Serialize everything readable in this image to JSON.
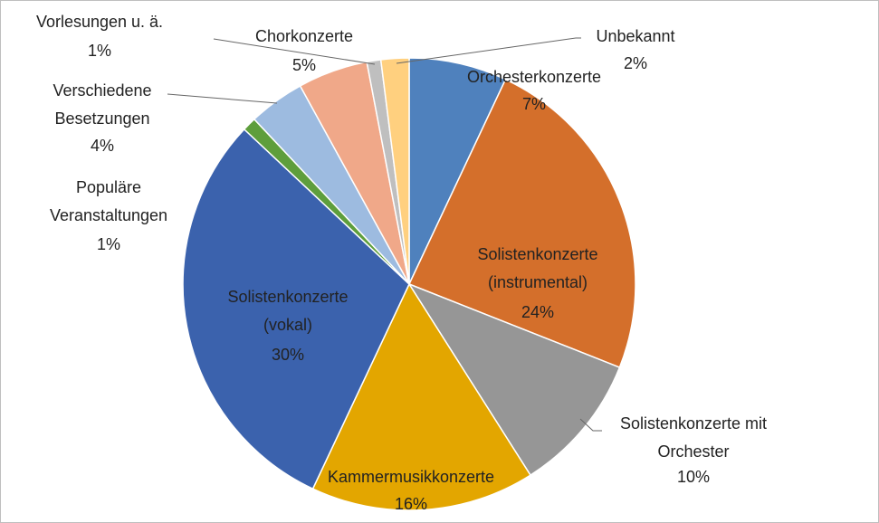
{
  "chart_data": {
    "type": "pie",
    "categories": [
      "Orchesterkonzerte",
      "Solistenkonzerte (instrumental)",
      "Solistenkonzerte mit Orchester",
      "Kammermusikkonzerte",
      "Solistenkonzerte (vokal)",
      "Populäre Veranstaltungen",
      "Verschiedene Besetzungen",
      "Chorkonzerte",
      "Vorlesungen u. ä.",
      "Unbekannt"
    ],
    "values": [
      7,
      24,
      10,
      16,
      30,
      1,
      4,
      5,
      1,
      2
    ],
    "value_labels": [
      "7%",
      "24%",
      "10%",
      "16%",
      "30%",
      "1%",
      "4%",
      "5%",
      "1%",
      "2%"
    ],
    "colors": [
      "#4f81bd",
      "#d46f2b",
      "#969696",
      "#e3a600",
      "#3b62ad",
      "#5e9e3c",
      "#9dbbe0",
      "#f0a889",
      "#bfbfbf",
      "#ffd07f"
    ]
  }
}
